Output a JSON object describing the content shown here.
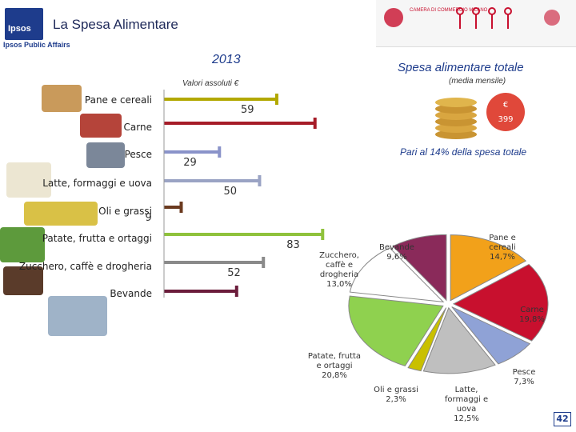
{
  "header": {
    "title": "La Spesa Alimentare",
    "logo_text": "Ipsos",
    "logo_sub": "Ipsos Public Affairs",
    "banner_text": "CAMERA DI COMMERCIO MILANO"
  },
  "bar_chart_heading": {
    "year": "2013",
    "subtitle": "Valori assoluti €"
  },
  "right_panel": {
    "title": "Spesa alimentare totale",
    "subtitle": "(media mensile)",
    "coin_symbol": "€",
    "coin_value": "399",
    "share_note": "Pari al 14% della spesa totale"
  },
  "page_number": "42",
  "colors": {
    "title_blue": "#1e3c8c",
    "bar_colors": [
      "#b2a800",
      "#a61c28",
      "#8a93c9",
      "#9aa3c4",
      "#6b3a1f",
      "#8fc23c",
      "#8a8a8a",
      "#6b1c3b"
    ]
  },
  "chart_data": [
    {
      "type": "bar",
      "title": "2013",
      "subtitle": "Valori assoluti €",
      "categories": [
        "Pane e cereali",
        "Carne",
        "Pesce",
        "Latte, formaggi e uova",
        "Oli e grassi",
        "Patate, frutta e ortaggi",
        "Zucchero, caffè e drogheria",
        "Bevande"
      ],
      "values": [
        59,
        79,
        29,
        50,
        9,
        83,
        52,
        38
      ],
      "data_labels": [
        "59",
        "",
        "29",
        "50",
        "9",
        "83",
        "52",
        ""
      ],
      "xlim": [
        0,
        90
      ]
    },
    {
      "type": "pie",
      "title": "Spesa alimentare totale",
      "subtitle": "(media mensile)",
      "labels": [
        "Pane e cereali",
        "Carne",
        "Pesce",
        "Latte, formaggi e uova",
        "Oli e grassi",
        "Patate, frutta e ortaggi",
        "Zucchero, caffè e drogheria",
        "Bevande"
      ],
      "values": [
        14.7,
        19.8,
        7.3,
        12.5,
        2.3,
        20.8,
        13.0,
        9.6
      ],
      "display_labels": [
        "Pane e\ncereali\n14,7%",
        "Carne\n19,8%",
        "Pesce\n7,3%",
        "Latte,\nformaggi e\nuova\n12,5%",
        "Oli e grassi\n2,3%",
        "Patate, frutta\ne ortaggi\n20,8%",
        "Zucchero,\ncaffè e\ndrogheria\n13,0%",
        "Bevande\n9,6%"
      ],
      "colors": [
        "#f2a11a",
        "#c8102e",
        "#8fa2d6",
        "#bfbfbf",
        "#c9c000",
        "#8fd14f",
        "#ffffff",
        "#8a2a5a"
      ]
    }
  ]
}
